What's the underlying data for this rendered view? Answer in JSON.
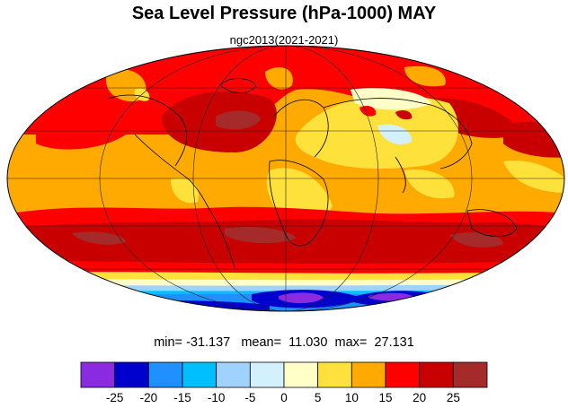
{
  "title": "Sea Level Pressure (hPa-1000) MAY",
  "subtitle": "ngc2013(2021-2021)",
  "stats": {
    "min_label": "min=",
    "min_value": "-31.137",
    "mean_label": "mean=",
    "mean_value": "11.030",
    "max_label": "max=",
    "max_value": "27.131"
  },
  "colorbar": {
    "colors": [
      "#8a2be2",
      "#0000cd",
      "#1e90ff",
      "#00bfff",
      "#a0d2ff",
      "#d2f0ff",
      "#ffffc8",
      "#ffe13c",
      "#ffaa00",
      "#ff0000",
      "#c80000",
      "#a52a2a"
    ],
    "labels": [
      "-25",
      "-20",
      "-15",
      "-10",
      "-5",
      "0",
      "5",
      "10",
      "15",
      "20",
      "25"
    ]
  }
}
